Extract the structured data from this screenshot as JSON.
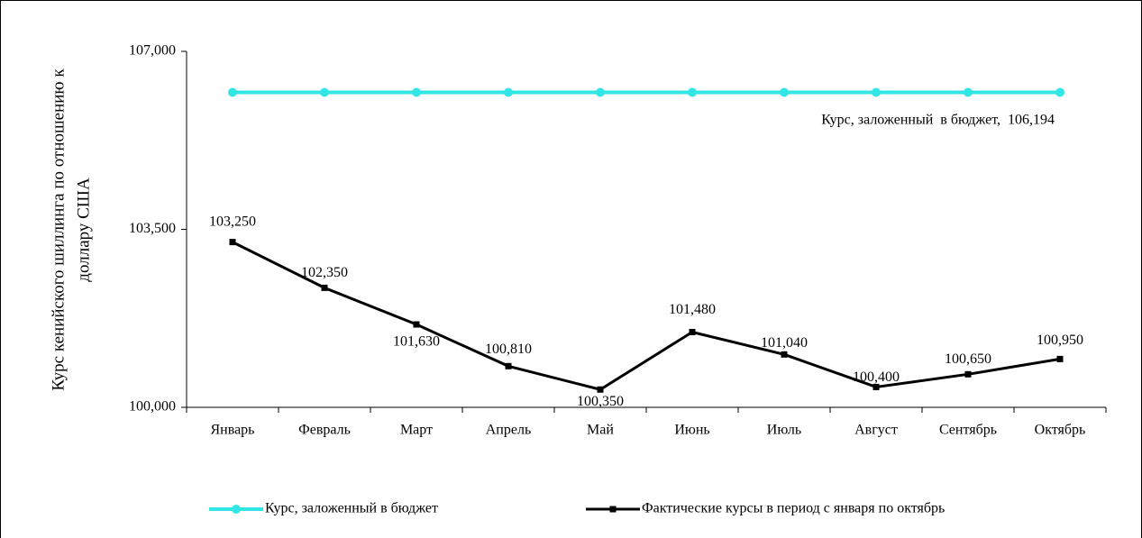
{
  "chart_data": {
    "type": "line",
    "y_label": [
      "Курс кенийского шиллинга по отношению к",
      "доллару США"
    ],
    "categories": [
      "Январь",
      "Февраль",
      "Март",
      "Апрель",
      "Май",
      "Июнь",
      "Июль",
      "Август",
      "Сентябрь",
      "Октябрь"
    ],
    "series": [
      {
        "name": "Курс, заложенный в бюджет",
        "color": "#33e6e6",
        "marker": "circle",
        "values": [
          106.194,
          106.194,
          106.194,
          106.194,
          106.194,
          106.194,
          106.194,
          106.194,
          106.194,
          106.194
        ]
      },
      {
        "name": "Фактические курсы в период с января по октябрь",
        "color": "#000000",
        "marker": "square",
        "values": [
          103.25,
          102.35,
          101.63,
          100.81,
          100.35,
          101.48,
          101.04,
          100.4,
          100.65,
          100.95
        ],
        "value_labels": [
          "103,250",
          "102,350",
          "101,630",
          "100,810",
          "100,350",
          "101,480",
          "101,040",
          "100,400",
          "100,650",
          "100,950"
        ]
      }
    ],
    "annotations": [
      "Курс, заложенный  в бюджет,  106,194"
    ],
    "ylim": [
      100,
      107
    ],
    "yticks": [
      {
        "value": 100,
        "label": "100,000"
      },
      {
        "value": 103.5,
        "label": "103,500"
      },
      {
        "value": 107,
        "label": "107,000"
      }
    ],
    "legend": "bottom"
  }
}
